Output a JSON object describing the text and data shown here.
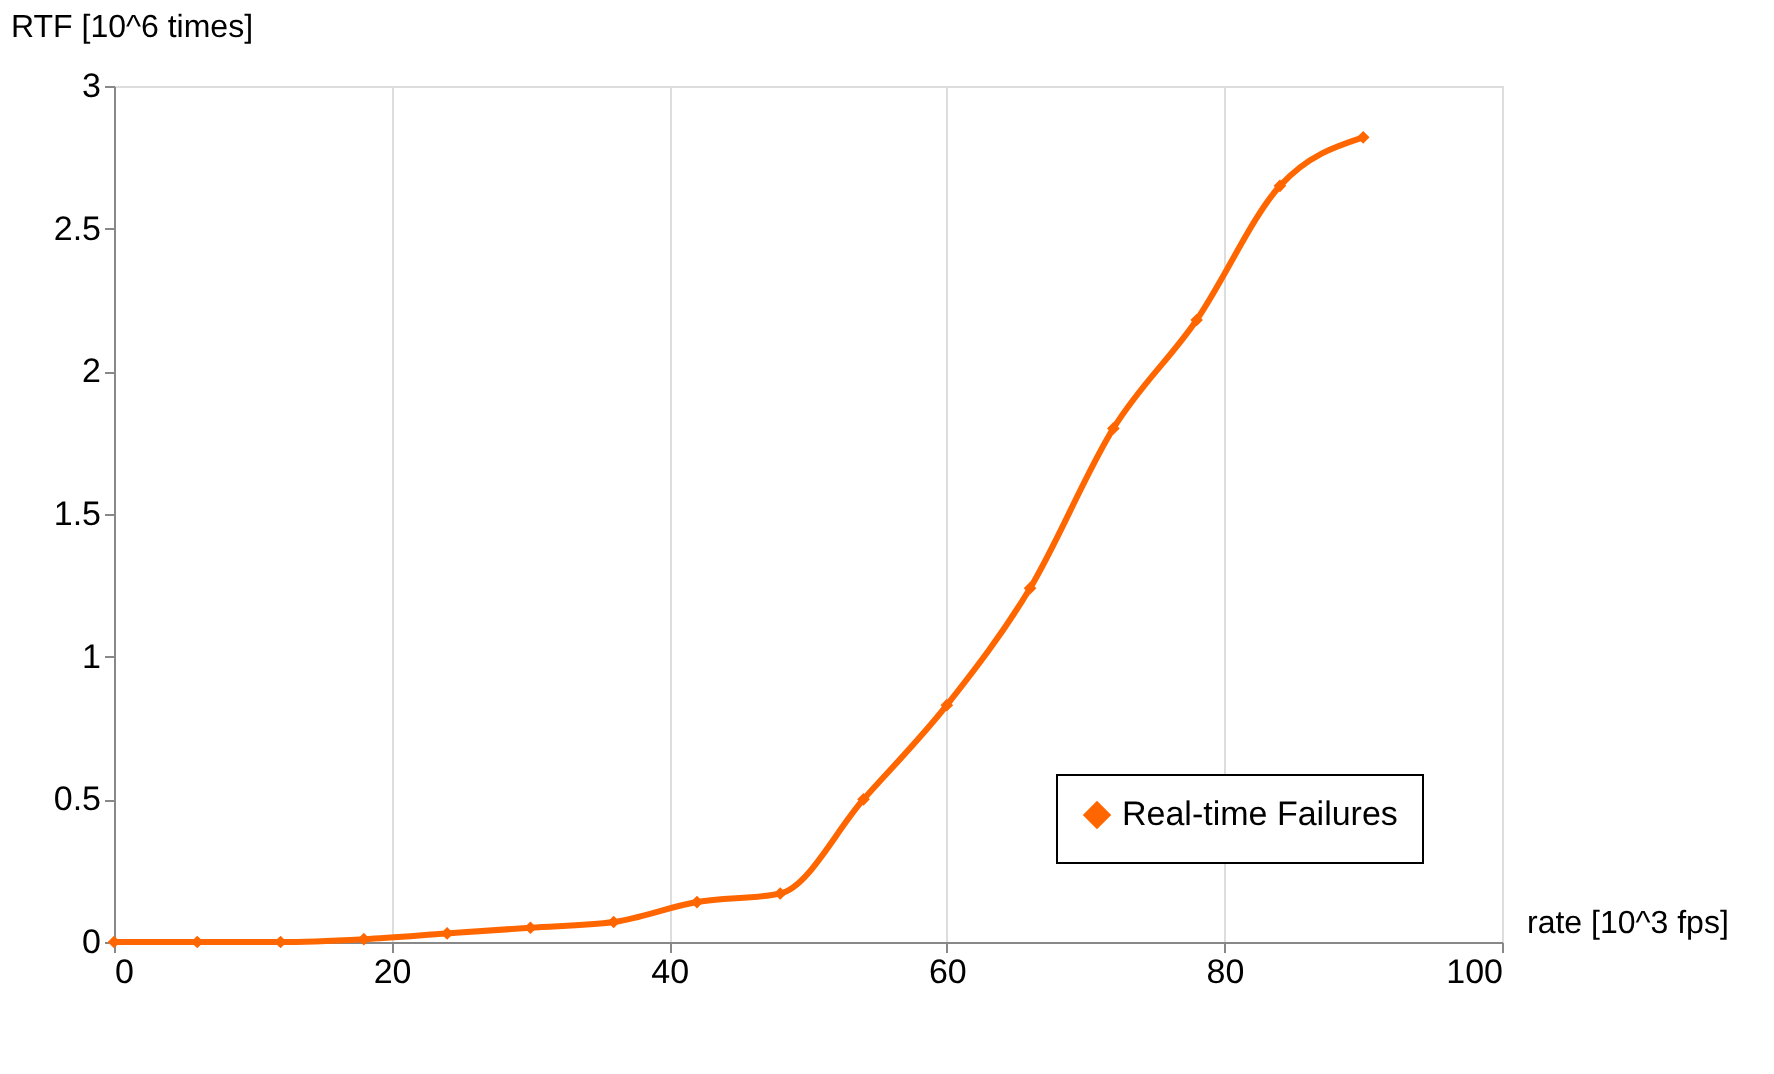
{
  "chart_data": {
    "type": "line",
    "xlabel": "rate [10^3 fps]",
    "ylabel": "RTF [10^6 times]",
    "x": [
      0,
      6,
      12,
      18,
      24,
      30,
      36,
      42,
      48,
      54,
      60,
      66,
      72,
      78,
      84,
      90
    ],
    "series": [
      {
        "name": "Real-time Failures",
        "color": "#ff6600",
        "values": [
          0,
          0,
          0,
          0.01,
          0.03,
          0.05,
          0.07,
          0.14,
          0.17,
          0.5,
          0.83,
          1.24,
          1.8,
          2.18,
          2.65,
          2.82
        ]
      }
    ],
    "xlim": [
      0,
      100
    ],
    "xticks": [
      0,
      20,
      40,
      60,
      80,
      100
    ],
    "ylim": [
      0,
      3
    ],
    "yticks": [
      0,
      0.5,
      1,
      1.5,
      2,
      2.5,
      3
    ],
    "grid": "x",
    "legend": "bottom right",
    "marker": "diamond",
    "line_style": "solid"
  }
}
